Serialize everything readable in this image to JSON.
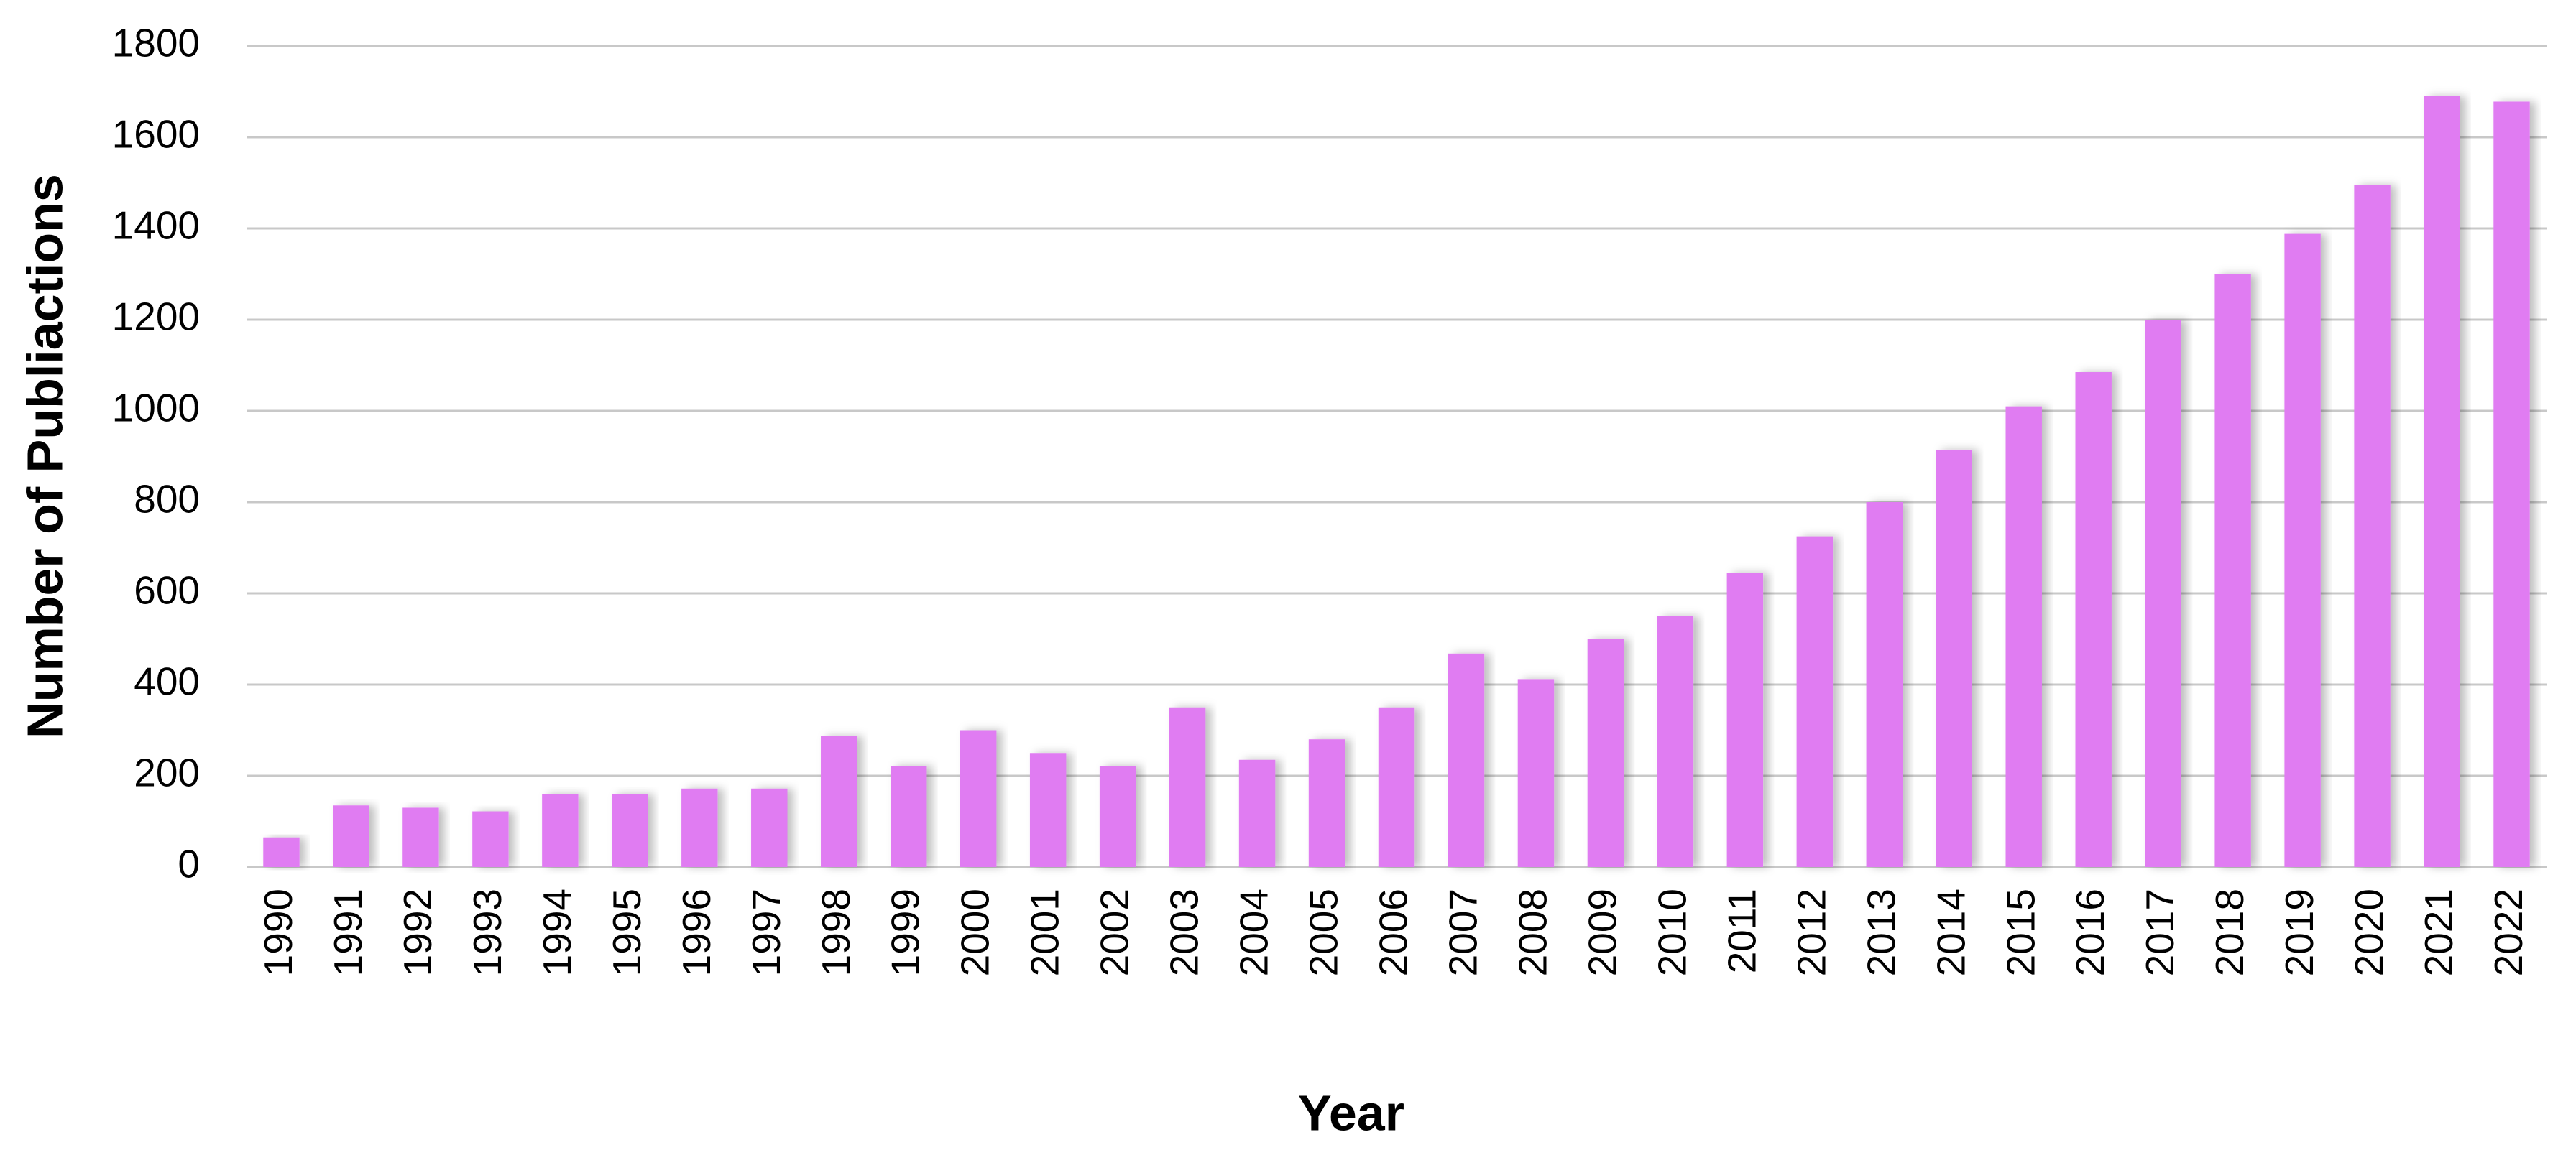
{
  "chart_data": {
    "type": "bar",
    "x_label": "Year",
    "y_label": "Number of Publiactions",
    "categories": [
      "1990",
      "1991",
      "1992",
      "1993",
      "1994",
      "1995",
      "1996",
      "1997",
      "1998",
      "1999",
      "2000",
      "2001",
      "2002",
      "2003",
      "2004",
      "2005",
      "2006",
      "2007",
      "2008",
      "2009",
      "2010",
      "2011",
      "2012",
      "2013",
      "2014",
      "2015",
      "2016",
      "2017",
      "2018",
      "2019",
      "2020",
      "2021",
      "2022"
    ],
    "values": [
      65,
      135,
      130,
      122,
      160,
      160,
      172,
      172,
      287,
      222,
      300,
      250,
      222,
      350,
      235,
      280,
      350,
      468,
      412,
      500,
      550,
      645,
      725,
      800,
      915,
      1010,
      1085,
      1200,
      1300,
      1388,
      1495,
      1690,
      1678
    ],
    "color": "#e07bf2",
    "ylim": [
      0,
      1800
    ],
    "yticks": [
      0,
      200,
      400,
      600,
      800,
      1000,
      1200,
      1400,
      1600,
      1800
    ],
    "grid": true
  }
}
